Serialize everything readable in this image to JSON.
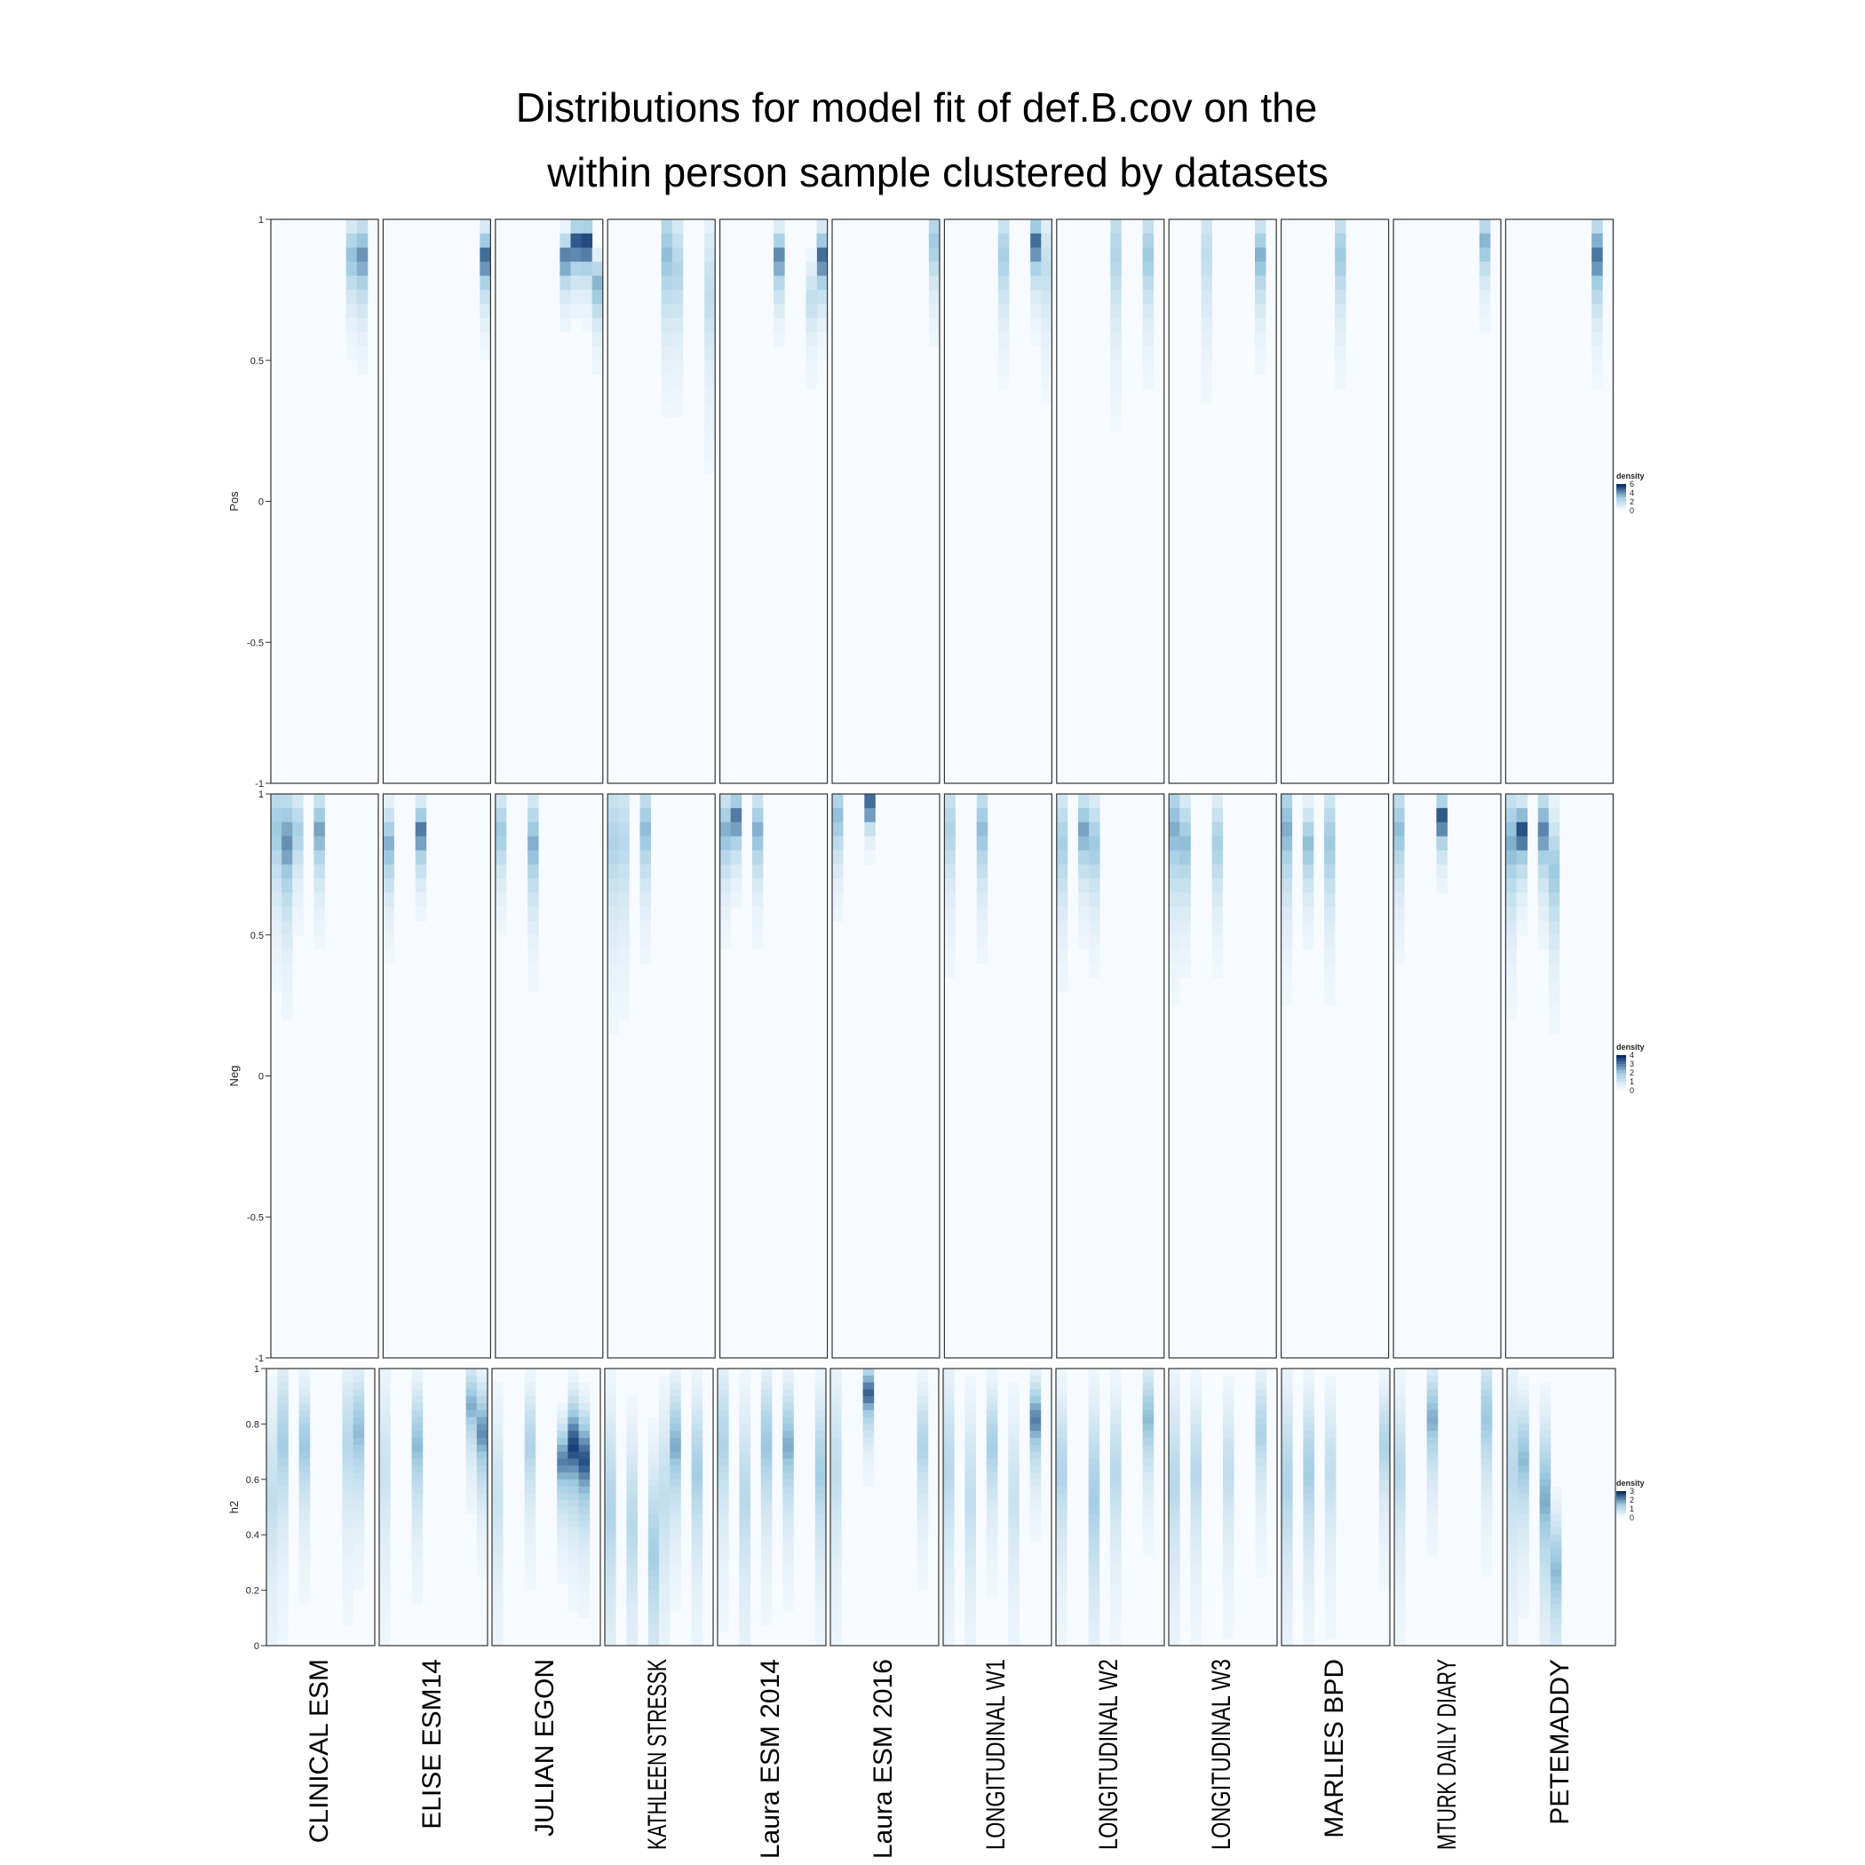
{
  "title": {
    "line1": "Distributions for model fit of def.B.cov on the",
    "line2": "within person sample clustered by datasets"
  },
  "colors": {
    "low": "#f7fbff",
    "mid": "#9ecae1",
    "high": "#08306b",
    "panel_border": "#333333"
  },
  "chart_data": {
    "type": "heatmap",
    "title": "Distributions for model fit of def.B.cov on the within person sample clustered by datasets",
    "datasets": [
      "CLINICAL ESM",
      "ELISE ESM14",
      "JULIAN EGON",
      "KATHLEEN STRESSK",
      "Laura ESM 2014",
      "Laura ESM 2016",
      "LONGITUDINAL W1",
      "LONGITUDINAL W2",
      "LONGITUDINAL W3",
      "MARLIES BPD",
      "MTURK DAILY DIARY",
      "PETEMADDY"
    ],
    "rows": [
      {
        "ylabel": "Pos",
        "ylim": [
          -1,
          1
        ],
        "yticks": [
          1,
          0.5,
          0,
          -0.5,
          -1
        ],
        "ytick_labels": [
          "1",
          "0.5",
          "0",
          "-0.5",
          "-1"
        ],
        "legend": {
          "title": "density",
          "max": 6,
          "ticks": [
            6,
            4,
            2,
            0
          ]
        },
        "columns_per_panel": 10,
        "bands": [
          [
            {
              "col": 7,
              "peak": 0.85,
              "width": 0.18,
              "intensity": 0.55
            },
            {
              "col": 8,
              "peak": 0.85,
              "width": 0.2,
              "intensity": 0.7
            }
          ],
          [
            {
              "col": 9,
              "peak": 0.85,
              "width": 0.15,
              "intensity": 0.85
            }
          ],
          [
            {
              "col": 6,
              "peak": 0.85,
              "width": 0.12,
              "intensity": 0.8
            },
            {
              "col": 7,
              "peak": 0.9,
              "width": 0.12,
              "intensity": 0.95
            },
            {
              "col": 8,
              "peak": 0.9,
              "width": 0.12,
              "intensity": 1.0
            },
            {
              "col": 9,
              "peak": 0.75,
              "width": 0.15,
              "intensity": 0.6
            }
          ],
          [
            {
              "col": 5,
              "peak": 0.85,
              "width": 0.3,
              "intensity": 0.55
            },
            {
              "col": 6,
              "peak": 0.8,
              "width": 0.3,
              "intensity": 0.4
            },
            {
              "col": 9,
              "peak": 0.7,
              "width": 0.4,
              "intensity": 0.3
            }
          ],
          [
            {
              "col": 5,
              "peak": 0.85,
              "width": 0.15,
              "intensity": 0.75
            },
            {
              "col": 9,
              "peak": 0.85,
              "width": 0.15,
              "intensity": 0.85
            },
            {
              "col": 8,
              "peak": 0.7,
              "width": 0.2,
              "intensity": 0.3
            }
          ],
          [
            {
              "col": 9,
              "peak": 0.9,
              "width": 0.2,
              "intensity": 0.5
            }
          ],
          [
            {
              "col": 5,
              "peak": 0.85,
              "width": 0.25,
              "intensity": 0.45
            },
            {
              "col": 8,
              "peak": 0.9,
              "width": 0.15,
              "intensity": 0.85
            },
            {
              "col": 9,
              "peak": 0.8,
              "width": 0.3,
              "intensity": 0.3
            }
          ],
          [
            {
              "col": 5,
              "peak": 0.85,
              "width": 0.35,
              "intensity": 0.4
            },
            {
              "col": 8,
              "peak": 0.85,
              "width": 0.25,
              "intensity": 0.5
            }
          ],
          [
            {
              "col": 3,
              "peak": 0.85,
              "width": 0.35,
              "intensity": 0.3
            },
            {
              "col": 8,
              "peak": 0.85,
              "width": 0.2,
              "intensity": 0.6
            }
          ],
          [
            {
              "col": 5,
              "peak": 0.85,
              "width": 0.25,
              "intensity": 0.5
            }
          ],
          [
            {
              "col": 8,
              "peak": 0.9,
              "width": 0.15,
              "intensity": 0.6
            }
          ],
          [
            {
              "col": 8,
              "peak": 0.85,
              "width": 0.2,
              "intensity": 0.8
            }
          ]
        ]
      },
      {
        "ylabel": "Neg",
        "ylim": [
          -1,
          1
        ],
        "yticks": [
          1,
          0.5,
          0,
          -0.5,
          -1
        ],
        "ytick_labels": [
          "1",
          "0.5",
          "0",
          "-0.5",
          "-1"
        ],
        "legend": {
          "title": "density",
          "max": 4,
          "ticks": [
            4,
            3,
            2,
            1,
            0
          ]
        },
        "columns_per_panel": 10,
        "bands": [
          [
            {
              "col": 0,
              "peak": 0.85,
              "width": 0.3,
              "intensity": 0.5
            },
            {
              "col": 1,
              "peak": 0.8,
              "width": 0.3,
              "intensity": 0.7
            },
            {
              "col": 2,
              "peak": 0.85,
              "width": 0.2,
              "intensity": 0.45
            },
            {
              "col": 4,
              "peak": 0.85,
              "width": 0.2,
              "intensity": 0.65
            }
          ],
          [
            {
              "col": 0,
              "peak": 0.8,
              "width": 0.2,
              "intensity": 0.6
            },
            {
              "col": 3,
              "peak": 0.85,
              "width": 0.15,
              "intensity": 0.8
            }
          ],
          [
            {
              "col": 0,
              "peak": 0.85,
              "width": 0.2,
              "intensity": 0.5
            },
            {
              "col": 3,
              "peak": 0.8,
              "width": 0.25,
              "intensity": 0.6
            }
          ],
          [
            {
              "col": 0,
              "peak": 0.8,
              "width": 0.4,
              "intensity": 0.4
            },
            {
              "col": 1,
              "peak": 0.8,
              "width": 0.4,
              "intensity": 0.35
            },
            {
              "col": 3,
              "peak": 0.85,
              "width": 0.25,
              "intensity": 0.55
            }
          ],
          [
            {
              "col": 0,
              "peak": 0.85,
              "width": 0.2,
              "intensity": 0.6
            },
            {
              "col": 1,
              "peak": 0.9,
              "width": 0.15,
              "intensity": 0.8
            },
            {
              "col": 3,
              "peak": 0.85,
              "width": 0.2,
              "intensity": 0.6
            }
          ],
          [
            {
              "col": 0,
              "peak": 0.9,
              "width": 0.2,
              "intensity": 0.55
            },
            {
              "col": 3,
              "peak": 0.95,
              "width": 0.08,
              "intensity": 1.0
            }
          ],
          [
            {
              "col": 0,
              "peak": 0.85,
              "width": 0.3,
              "intensity": 0.4
            },
            {
              "col": 3,
              "peak": 0.85,
              "width": 0.25,
              "intensity": 0.55
            }
          ],
          [
            {
              "col": 0,
              "peak": 0.8,
              "width": 0.3,
              "intensity": 0.45
            },
            {
              "col": 2,
              "peak": 0.85,
              "width": 0.2,
              "intensity": 0.65
            },
            {
              "col": 3,
              "peak": 0.8,
              "width": 0.25,
              "intensity": 0.5
            }
          ],
          [
            {
              "col": 0,
              "peak": 0.85,
              "width": 0.3,
              "intensity": 0.6
            },
            {
              "col": 1,
              "peak": 0.8,
              "width": 0.25,
              "intensity": 0.55
            },
            {
              "col": 4,
              "peak": 0.8,
              "width": 0.25,
              "intensity": 0.45
            }
          ],
          [
            {
              "col": 0,
              "peak": 0.85,
              "width": 0.3,
              "intensity": 0.6
            },
            {
              "col": 2,
              "peak": 0.8,
              "width": 0.2,
              "intensity": 0.55
            },
            {
              "col": 4,
              "peak": 0.8,
              "width": 0.3,
              "intensity": 0.5
            }
          ],
          [
            {
              "col": 0,
              "peak": 0.85,
              "width": 0.25,
              "intensity": 0.55
            },
            {
              "col": 4,
              "peak": 0.9,
              "width": 0.12,
              "intensity": 0.95
            }
          ],
          [
            {
              "col": 0,
              "peak": 0.8,
              "width": 0.3,
              "intensity": 0.6
            },
            {
              "col": 1,
              "peak": 0.85,
              "width": 0.15,
              "intensity": 0.95
            },
            {
              "col": 3,
              "peak": 0.85,
              "width": 0.2,
              "intensity": 0.75
            },
            {
              "col": 4,
              "peak": 0.7,
              "width": 0.3,
              "intensity": 0.5
            }
          ]
        ]
      },
      {
        "ylabel": "h2",
        "ylim": [
          0,
          1
        ],
        "yticks": [
          1,
          0.8,
          0.6,
          0.4,
          0.2,
          0
        ],
        "ytick_labels": [
          "1",
          "0.8",
          "0.6",
          "0.4",
          "0.2",
          "0"
        ],
        "legend": {
          "title": "density",
          "max": 3,
          "ticks": [
            3,
            2,
            1,
            0
          ]
        },
        "columns_per_panel": 10,
        "bands": [
          [
            {
              "col": 0,
              "peak": 0.5,
              "width": 0.5,
              "intensity": 0.3
            },
            {
              "col": 1,
              "peak": 0.7,
              "width": 0.4,
              "intensity": 0.45
            },
            {
              "col": 3,
              "peak": 0.7,
              "width": 0.3,
              "intensity": 0.5
            },
            {
              "col": 7,
              "peak": 0.7,
              "width": 0.4,
              "intensity": 0.35
            },
            {
              "col": 8,
              "peak": 0.75,
              "width": 0.3,
              "intensity": 0.55
            }
          ],
          [
            {
              "col": 0,
              "peak": 0.6,
              "width": 0.5,
              "intensity": 0.25
            },
            {
              "col": 3,
              "peak": 0.7,
              "width": 0.3,
              "intensity": 0.55
            },
            {
              "col": 8,
              "peak": 0.85,
              "width": 0.2,
              "intensity": 0.6
            },
            {
              "col": 9,
              "peak": 0.75,
              "width": 0.25,
              "intensity": 0.7
            }
          ],
          [
            {
              "col": 0,
              "peak": 0.5,
              "width": 0.5,
              "intensity": 0.25
            },
            {
              "col": 3,
              "peak": 0.7,
              "width": 0.3,
              "intensity": 0.4
            },
            {
              "col": 6,
              "peak": 0.65,
              "width": 0.2,
              "intensity": 0.75
            },
            {
              "col": 7,
              "peak": 0.7,
              "width": 0.25,
              "intensity": 0.95
            },
            {
              "col": 8,
              "peak": 0.65,
              "width": 0.25,
              "intensity": 0.9
            }
          ],
          [
            {
              "col": 0,
              "peak": 0.45,
              "width": 0.55,
              "intensity": 0.4
            },
            {
              "col": 2,
              "peak": 0.4,
              "width": 0.5,
              "intensity": 0.35
            },
            {
              "col": 4,
              "peak": 0.3,
              "width": 0.5,
              "intensity": 0.45
            },
            {
              "col": 5,
              "peak": 0.5,
              "width": 0.5,
              "intensity": 0.3
            },
            {
              "col": 6,
              "peak": 0.7,
              "width": 0.3,
              "intensity": 0.6
            },
            {
              "col": 8,
              "peak": 0.6,
              "width": 0.4,
              "intensity": 0.45
            }
          ],
          [
            {
              "col": 0,
              "peak": 0.7,
              "width": 0.4,
              "intensity": 0.4
            },
            {
              "col": 2,
              "peak": 0.5,
              "width": 0.5,
              "intensity": 0.35
            },
            {
              "col": 4,
              "peak": 0.7,
              "width": 0.35,
              "intensity": 0.5
            },
            {
              "col": 6,
              "peak": 0.7,
              "width": 0.3,
              "intensity": 0.6
            },
            {
              "col": 9,
              "peak": 0.6,
              "width": 0.4,
              "intensity": 0.45
            }
          ],
          [
            {
              "col": 0,
              "peak": 0.6,
              "width": 0.5,
              "intensity": 0.3
            },
            {
              "col": 3,
              "peak": 0.9,
              "width": 0.15,
              "intensity": 0.85
            },
            {
              "col": 8,
              "peak": 0.7,
              "width": 0.3,
              "intensity": 0.4
            }
          ],
          [
            {
              "col": 0,
              "peak": 0.6,
              "width": 0.5,
              "intensity": 0.35
            },
            {
              "col": 2,
              "peak": 0.5,
              "width": 0.5,
              "intensity": 0.3
            },
            {
              "col": 4,
              "peak": 0.7,
              "width": 0.3,
              "intensity": 0.45
            },
            {
              "col": 6,
              "peak": 0.5,
              "width": 0.5,
              "intensity": 0.25
            },
            {
              "col": 8,
              "peak": 0.8,
              "width": 0.2,
              "intensity": 0.75
            }
          ],
          [
            {
              "col": 0,
              "peak": 0.6,
              "width": 0.4,
              "intensity": 0.4
            },
            {
              "col": 3,
              "peak": 0.5,
              "width": 0.5,
              "intensity": 0.45
            },
            {
              "col": 5,
              "peak": 0.6,
              "width": 0.4,
              "intensity": 0.35
            },
            {
              "col": 8,
              "peak": 0.8,
              "width": 0.25,
              "intensity": 0.55
            }
          ],
          [
            {
              "col": 0,
              "peak": 0.55,
              "width": 0.5,
              "intensity": 0.35
            },
            {
              "col": 2,
              "peak": 0.6,
              "width": 0.4,
              "intensity": 0.35
            },
            {
              "col": 5,
              "peak": 0.6,
              "width": 0.4,
              "intensity": 0.3
            },
            {
              "col": 8,
              "peak": 0.75,
              "width": 0.3,
              "intensity": 0.4
            }
          ],
          [
            {
              "col": 0,
              "peak": 0.55,
              "width": 0.5,
              "intensity": 0.4
            },
            {
              "col": 2,
              "peak": 0.6,
              "width": 0.4,
              "intensity": 0.45
            },
            {
              "col": 4,
              "peak": 0.6,
              "width": 0.4,
              "intensity": 0.3
            },
            {
              "col": 9,
              "peak": 0.7,
              "width": 0.3,
              "intensity": 0.4
            }
          ],
          [
            {
              "col": 0,
              "peak": 0.6,
              "width": 0.4,
              "intensity": 0.35
            },
            {
              "col": 3,
              "peak": 0.8,
              "width": 0.25,
              "intensity": 0.6
            },
            {
              "col": 8,
              "peak": 0.8,
              "width": 0.3,
              "intensity": 0.5
            }
          ],
          [
            {
              "col": 0,
              "peak": 0.6,
              "width": 0.5,
              "intensity": 0.35
            },
            {
              "col": 1,
              "peak": 0.65,
              "width": 0.3,
              "intensity": 0.55
            },
            {
              "col": 3,
              "peak": 0.5,
              "width": 0.4,
              "intensity": 0.6
            },
            {
              "col": 4,
              "peak": 0.25,
              "width": 0.3,
              "intensity": 0.55
            }
          ]
        ]
      }
    ]
  }
}
